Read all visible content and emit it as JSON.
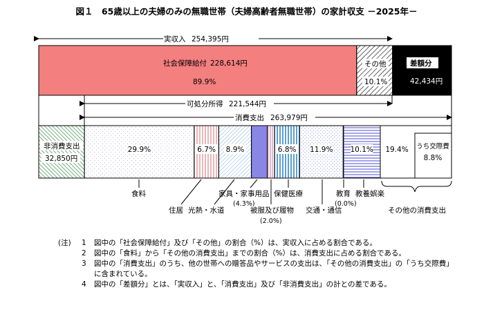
{
  "title": "図１　65歳以上の夫婦のみの無職世帯（夫婦高齢者無職世帯）の家計収支 －2025年－",
  "chart_data": {
    "type": "bar",
    "income": {
      "label": "実収入",
      "value_text": "254,395円",
      "value": 254395,
      "items": [
        {
          "name": "社会保障給付",
          "value_text": "228,614円",
          "share_text": "89.9%",
          "value": 228614,
          "share": 89.9
        },
        {
          "name": "その他",
          "share_text": "10.1%",
          "share": 10.1
        }
      ],
      "gap": {
        "name": "差額分",
        "value_text": "42,434円",
        "value": 42434
      }
    },
    "disposable": {
      "label": "可処分所得",
      "value_text": "221,544円",
      "value": 221544
    },
    "consumption": {
      "label": "消費支出",
      "value_text": "263,979円",
      "value": 263979,
      "non_consumption": {
        "name": "非消費支出",
        "value_text": "32,850円",
        "value": 32850
      },
      "items": [
        {
          "name": "食料",
          "share_text": "29.9%",
          "share": 29.9
        },
        {
          "name": "住居",
          "share_text": "6.7%",
          "share": 6.7
        },
        {
          "name": "光熱・水道",
          "share_text": "8.9%",
          "share": 8.9
        },
        {
          "name": "家具・家事用品",
          "share_text": "(4.3%)",
          "share": 4.3
        },
        {
          "name": "被服及び履物",
          "share_text": "(2.0%)",
          "share": 2.0
        },
        {
          "name": "保健医療",
          "share_text": "6.8%",
          "share": 6.8
        },
        {
          "name": "交通・通信",
          "share_text": "11.9%",
          "share": 11.9
        },
        {
          "name": "教育",
          "share_text": "(0.0%)",
          "share": 0.0
        },
        {
          "name": "教養娯楽",
          "share_text": "10.1%",
          "share": 10.1
        },
        {
          "name": "その他の消費支出",
          "share_text": "19.4%",
          "share": 19.4,
          "sub": {
            "name": "うち交際費",
            "share_text": "8.8%",
            "share": 8.8
          }
        }
      ]
    }
  },
  "notes": {
    "label": "(注)",
    "items": [
      {
        "num": "1",
        "text": "図中の「社会保障給付」及び「その他」の割合（%）は、実収入に占める割合である。"
      },
      {
        "num": "2",
        "text": "図中の「食料」から「その他の消費支出」までの割合（%）は、消費支出に占める割合である。"
      },
      {
        "num": "3",
        "text": "図中の「消費支出」のうち、他の世帯への贈答品やサービスの支出は、「その他の消費支出」の「うち交際費」"
      },
      {
        "num": "",
        "text": "に含まれている。"
      },
      {
        "num": "4",
        "text": "図中の「差額分」とは、「実収入」と、「消費支出」及び「非消費支出」の計との差である。"
      }
    ]
  },
  "colors": {
    "social_security": "#f47f7f",
    "gap": "#000000",
    "household_goods": "#8a86e6",
    "non_consumption": "#4f9a5e",
    "housing": "#d65b5b",
    "utilities": "#7fb0d8",
    "clothing": "#c07a9a",
    "medical": "#2f87c8",
    "transport": "#a0b0e0",
    "recreation": "#4a4ad0"
  }
}
